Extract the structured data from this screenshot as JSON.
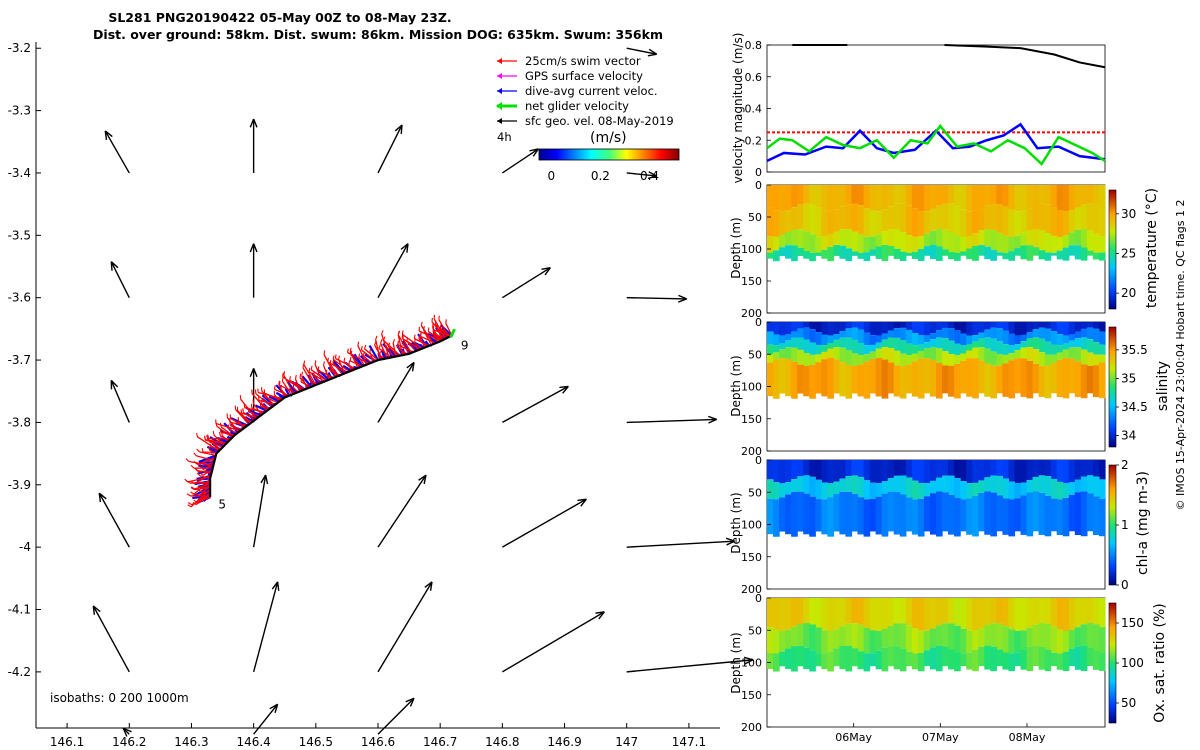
{
  "title": {
    "line1": "SL281 PNG20190422 05-May 00Z to 08-May 23Z.",
    "line2": "Dist. over ground: 58km. Dist. swum: 86km. Mission DOG: 635km. Swum: 356km"
  },
  "credit": "© IMOS 15-Apr-2024 23:00:04 Hobart time. QC flags 1  2",
  "colors": {
    "swim": "#ff0000",
    "gps": "#ff00ff",
    "dive_avg": "#0000ff",
    "net": "#00e000",
    "sfc": "#000000"
  },
  "chart_data": [
    {
      "type": "scatter",
      "name": "glider-track-map",
      "xlim": [
        146.05,
        147.15
      ],
      "ylim": [
        -4.29,
        -3.19
      ],
      "xticks": [
        146.1,
        146.2,
        146.3,
        146.4,
        146.5,
        146.6,
        146.7,
        146.8,
        146.9,
        147,
        147.1
      ],
      "yticks": [
        -3.2,
        -3.3,
        -3.4,
        -3.5,
        -3.6,
        -3.7,
        -3.8,
        -3.9,
        -4,
        -4.1,
        -4.2
      ],
      "legend": {
        "entries": [
          "25cm/s swim vector",
          "GPS surface velocity",
          "dive-avg current veloc.",
          "net glider velocity",
          "sfc geo. vel. 08-May-2019"
        ],
        "scale_label": "4h",
        "colorbar_title": "(m/s)",
        "colorbar_ticks": [
          "0",
          "0.2",
          "0.4"
        ],
        "colorbar_range": [
          -0.05,
          0.52
        ]
      },
      "isobaths_label": "isobaths: 0   200  1000m",
      "track": [
        [
          146.33,
          -3.92
        ],
        [
          146.33,
          -3.89
        ],
        [
          146.34,
          -3.85
        ],
        [
          146.37,
          -3.82
        ],
        [
          146.41,
          -3.79
        ],
        [
          146.45,
          -3.76
        ],
        [
          146.5,
          -3.74
        ],
        [
          146.55,
          -3.72
        ],
        [
          146.6,
          -3.7
        ],
        [
          146.65,
          -3.69
        ],
        [
          146.7,
          -3.67
        ],
        [
          146.72,
          -3.66
        ]
      ],
      "track_labels": [
        {
          "text": "5",
          "lon": 146.34,
          "lat": -3.93
        },
        {
          "text": "9",
          "lon": 146.73,
          "lat": -3.675
        }
      ],
      "current_vectors": [
        {
          "lon": 146.2,
          "lat": -3.4,
          "u": -0.04,
          "v": 0.07
        },
        {
          "lon": 146.2,
          "lat": -3.6,
          "u": -0.03,
          "v": 0.06
        },
        {
          "lon": 146.2,
          "lat": -3.8,
          "u": -0.03,
          "v": 0.07
        },
        {
          "lon": 146.2,
          "lat": -4.0,
          "u": -0.05,
          "v": 0.09
        },
        {
          "lon": 146.2,
          "lat": -4.2,
          "u": -0.06,
          "v": 0.11
        },
        {
          "lon": 146.2,
          "lat": -4.3,
          "u": -0.01,
          "v": 0.01
        },
        {
          "lon": 146.4,
          "lat": -3.4,
          "u": 0.0,
          "v": 0.09
        },
        {
          "lon": 146.4,
          "lat": -3.6,
          "u": 0.0,
          "v": 0.09
        },
        {
          "lon": 146.4,
          "lat": -3.8,
          "u": 0.0,
          "v": 0.09
        },
        {
          "lon": 146.4,
          "lat": -4.0,
          "u": 0.02,
          "v": 0.12
        },
        {
          "lon": 146.4,
          "lat": -4.2,
          "u": 0.04,
          "v": 0.15
        },
        {
          "lon": 146.4,
          "lat": -4.3,
          "u": 0.04,
          "v": 0.05
        },
        {
          "lon": 146.6,
          "lat": -3.4,
          "u": 0.04,
          "v": 0.08
        },
        {
          "lon": 146.6,
          "lat": -3.6,
          "u": 0.05,
          "v": 0.09
        },
        {
          "lon": 146.6,
          "lat": -3.8,
          "u": 0.06,
          "v": 0.1
        },
        {
          "lon": 146.6,
          "lat": -4.0,
          "u": 0.08,
          "v": 0.12
        },
        {
          "lon": 146.6,
          "lat": -4.2,
          "u": 0.09,
          "v": 0.15
        },
        {
          "lon": 146.6,
          "lat": -4.3,
          "u": 0.06,
          "v": 0.06
        },
        {
          "lon": 146.8,
          "lat": -3.4,
          "u": 0.06,
          "v": 0.04
        },
        {
          "lon": 146.8,
          "lat": -3.6,
          "u": 0.08,
          "v": 0.05
        },
        {
          "lon": 146.8,
          "lat": -3.8,
          "u": 0.11,
          "v": 0.06
        },
        {
          "lon": 146.8,
          "lat": -4.0,
          "u": 0.14,
          "v": 0.08
        },
        {
          "lon": 146.8,
          "lat": -4.2,
          "u": 0.17,
          "v": 0.1
        },
        {
          "lon": 147.0,
          "lat": -3.2,
          "u": 0.05,
          "v": -0.01
        },
        {
          "lon": 147.0,
          "lat": -3.4,
          "u": 0.05,
          "v": -0.005
        },
        {
          "lon": 147.0,
          "lat": -3.6,
          "u": 0.1,
          "v": -0.002
        },
        {
          "lon": 147.0,
          "lat": -3.8,
          "u": 0.15,
          "v": 0.005
        },
        {
          "lon": 147.0,
          "lat": -4.0,
          "u": 0.18,
          "v": 0.01
        },
        {
          "lon": 147.0,
          "lat": -4.2,
          "u": 0.21,
          "v": 0.02
        }
      ]
    },
    {
      "type": "line",
      "name": "velocity-magnitude",
      "ylabel": "velocity magnitude (m/s)",
      "ylim": [
        0,
        0.8
      ],
      "yticks": [
        "0",
        "0.2",
        "0.4",
        "0.6",
        "0.8"
      ],
      "xlim": [
        0,
        4
      ],
      "series": [
        {
          "name": "GPS surface velocity (black)",
          "x": [
            0.3,
            0.95,
            2.1,
            2.6,
            3.0,
            3.4,
            3.7,
            4.0
          ],
          "values": [
            0.8,
            0.8,
            0.8,
            0.79,
            0.78,
            0.74,
            0.69,
            0.66
          ]
        },
        {
          "name": "25cm/s swim vector (red)",
          "x": [
            0,
            4
          ],
          "values": [
            0.25,
            0.25
          ]
        },
        {
          "name": "dive-avg current veloc. (blue)",
          "x": [
            0,
            0.2,
            0.45,
            0.7,
            0.9,
            1.1,
            1.3,
            1.5,
            1.75,
            2.0,
            2.2,
            2.4,
            2.6,
            2.8,
            3.0,
            3.2,
            3.45,
            3.7,
            4.0
          ],
          "values": [
            0.07,
            0.12,
            0.11,
            0.16,
            0.15,
            0.26,
            0.15,
            0.12,
            0.14,
            0.26,
            0.15,
            0.16,
            0.2,
            0.23,
            0.3,
            0.15,
            0.16,
            0.1,
            0.08
          ]
        },
        {
          "name": "net glider velocity (green)",
          "x": [
            0,
            0.15,
            0.3,
            0.5,
            0.7,
            0.9,
            1.1,
            1.3,
            1.5,
            1.7,
            1.9,
            2.05,
            2.25,
            2.45,
            2.65,
            2.85,
            3.05,
            3.25,
            3.45,
            3.65,
            3.85,
            4.0
          ],
          "values": [
            0.15,
            0.21,
            0.2,
            0.13,
            0.22,
            0.17,
            0.15,
            0.2,
            0.09,
            0.2,
            0.18,
            0.29,
            0.16,
            0.18,
            0.13,
            0.2,
            0.15,
            0.05,
            0.22,
            0.17,
            0.12,
            0.07
          ]
        }
      ]
    },
    {
      "type": "heatmap",
      "name": "temperature-section",
      "ylabel": "Depth (m)",
      "cbar_label": "temperature (°C)",
      "clim": [
        18,
        33
      ],
      "cbar_ticks": [
        "20",
        "25",
        "30"
      ],
      "yticks": [
        "0",
        "50",
        "100",
        "150",
        "200"
      ],
      "ylim": [
        200,
        0
      ],
      "profiles_max_depth": 115,
      "layers": [
        {
          "top": 0,
          "bottom": 35,
          "value": 29.5
        },
        {
          "top": 35,
          "bottom": 75,
          "value": 29
        },
        {
          "top": 75,
          "bottom": 100,
          "value": 27.5
        },
        {
          "top": 100,
          "bottom": 115,
          "value": 25
        }
      ]
    },
    {
      "type": "heatmap",
      "name": "salinity-section",
      "ylabel": "Depth (m)",
      "cbar_label": "salinity",
      "clim": [
        33.8,
        35.9
      ],
      "cbar_ticks": [
        "34",
        "34.5",
        "35",
        "35.5"
      ],
      "yticks": [
        "0",
        "50",
        "100",
        "150",
        "200"
      ],
      "ylim": [
        200,
        0
      ],
      "profiles_max_depth": 115,
      "layers": [
        {
          "top": 0,
          "bottom": 15,
          "value": 34.0
        },
        {
          "top": 15,
          "bottom": 30,
          "value": 34.35
        },
        {
          "top": 30,
          "bottom": 45,
          "value": 34.7
        },
        {
          "top": 45,
          "bottom": 62,
          "value": 35.1
        },
        {
          "top": 62,
          "bottom": 115,
          "value": 35.45
        }
      ]
    },
    {
      "type": "heatmap",
      "name": "chlorophyll-section",
      "ylabel": "Depth (m)",
      "cbar_label": "chl-a (mg m-3)",
      "clim": [
        0,
        2
      ],
      "cbar_ticks": [
        "0",
        "1",
        "2"
      ],
      "yticks": [
        "0",
        "50",
        "100",
        "150",
        "200"
      ],
      "ylim": [
        200,
        0
      ],
      "profiles_max_depth": 115,
      "layers": [
        {
          "top": 0,
          "bottom": 30,
          "value": 0.2
        },
        {
          "top": 30,
          "bottom": 55,
          "value": 0.75
        },
        {
          "top": 55,
          "bottom": 115,
          "value": 0.45
        }
      ]
    },
    {
      "type": "heatmap",
      "name": "oxygen-saturation-section",
      "ylabel": "Depth (m)",
      "cbar_label": "Ox. sat. ratio (%)",
      "clim": [
        25,
        175
      ],
      "cbar_ticks": [
        "50",
        "100",
        "150"
      ],
      "yticks": [
        "0",
        "50",
        "100",
        "150",
        "200"
      ],
      "ylim": [
        200,
        0
      ],
      "xticks": [
        "06May",
        "07May",
        "08May"
      ],
      "xtick_pos": [
        1,
        2,
        3
      ],
      "xlim": [
        0,
        3.9
      ],
      "profiles_max_depth": 110,
      "layers": [
        {
          "top": 0,
          "bottom": 45,
          "value": 130
        },
        {
          "top": 45,
          "bottom": 80,
          "value": 112
        },
        {
          "top": 80,
          "bottom": 110,
          "value": 102
        }
      ]
    }
  ]
}
